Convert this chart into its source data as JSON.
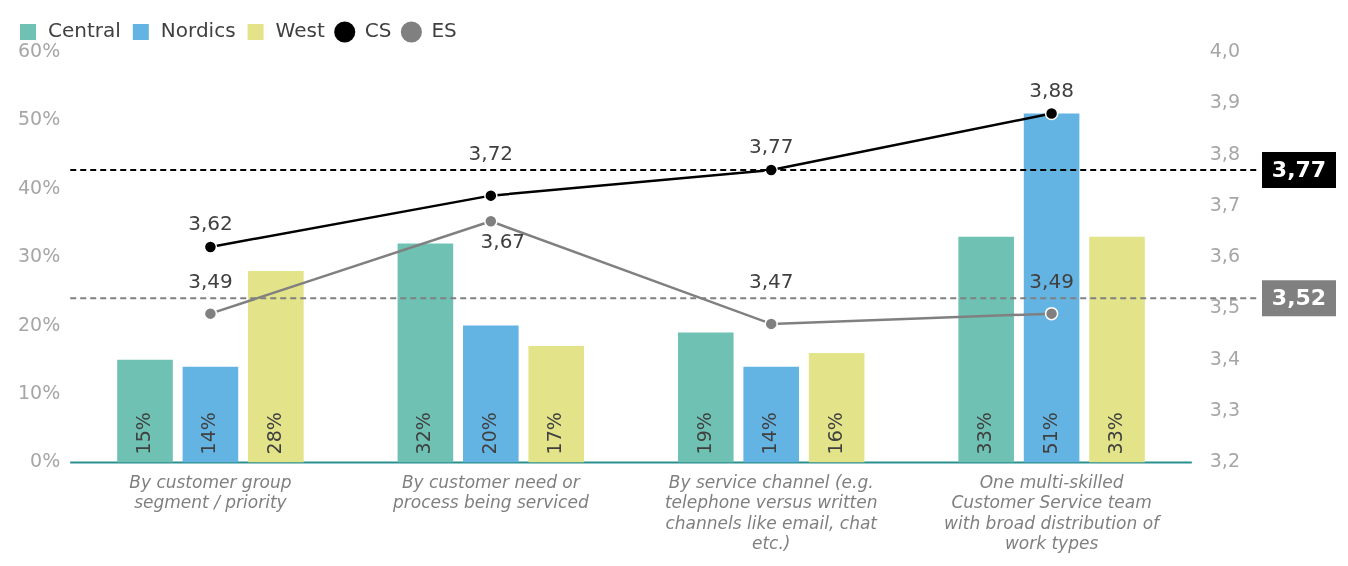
{
  "chart_data": {
    "type": "bar",
    "categories": [
      "By customer group segment / priority",
      "By customer need or process being serviced",
      "By service channel (e.g. telephone versus written channels like email, chat etc.)",
      "One multi-skilled Customer Service team with broad distribution of work types"
    ],
    "series": [
      {
        "name": "Central",
        "color": "#6fc1b3",
        "values": [
          15,
          32,
          19,
          33
        ],
        "value_labels": [
          "15%",
          "32%",
          "19%",
          "33%"
        ]
      },
      {
        "name": "Nordics",
        "color": "#64b4e3",
        "values": [
          14,
          20,
          14,
          51
        ],
        "value_labels": [
          "14%",
          "20%",
          "14%",
          "51%"
        ]
      },
      {
        "name": "West",
        "color": "#e3e38a",
        "values": [
          28,
          17,
          16,
          33
        ],
        "value_labels": [
          "28%",
          "17%",
          "16%",
          "33%"
        ]
      },
      {
        "name": "CS",
        "type": "line",
        "axis": "y2",
        "color": "#000000",
        "marker": "circle",
        "line_style": "solid",
        "values": [
          3.62,
          3.72,
          3.77,
          3.88
        ],
        "value_labels": [
          "3,62",
          "3,72",
          "3,77",
          "3,88"
        ]
      },
      {
        "name": "ES",
        "type": "line",
        "axis": "y2",
        "color": "#808080",
        "marker": "circle",
        "line_style": "solid",
        "values": [
          3.49,
          3.67,
          3.47,
          3.49
        ],
        "value_labels": [
          "3,49",
          "3,67",
          "3,47",
          "3,49"
        ]
      }
    ],
    "ylim": [
      0,
      60
    ],
    "yticks": [
      {
        "value": 0,
        "label": "0%"
      },
      {
        "value": 10,
        "label": "10%"
      },
      {
        "value": 20,
        "label": "20%"
      },
      {
        "value": 30,
        "label": "30%"
      },
      {
        "value": 40,
        "label": "40%"
      },
      {
        "value": 50,
        "label": "50%"
      },
      {
        "value": 60,
        "label": "60%"
      }
    ],
    "y2lim": [
      3.2,
      4.0
    ],
    "y2ticks": [
      {
        "value": 3.2,
        "label": "3,2"
      },
      {
        "value": 3.3,
        "label": "3,3"
      },
      {
        "value": 3.4,
        "label": "3,4"
      },
      {
        "value": 3.5,
        "label": "3,5"
      },
      {
        "value": 3.6,
        "label": "3,6"
      },
      {
        "value": 3.7,
        "label": "3,7"
      },
      {
        "value": 3.8,
        "label": "3,8"
      },
      {
        "value": 3.9,
        "label": "3,9"
      },
      {
        "value": 4.0,
        "label": "4,0"
      }
    ],
    "ref_lines": [
      {
        "axis": "y2",
        "value": 3.77,
        "label": "3,77",
        "color": "#000000",
        "line_style": "dashed"
      },
      {
        "axis": "y2",
        "value": 3.52,
        "label": "3,52",
        "color": "#808080",
        "line_style": "dashed"
      }
    ],
    "legend": "top"
  }
}
